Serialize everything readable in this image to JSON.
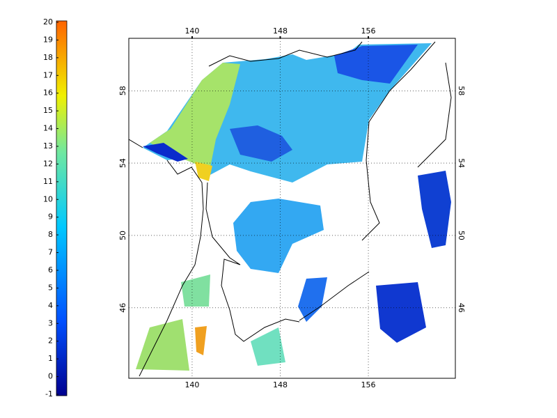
{
  "colorbar": {
    "range": [
      -1,
      20
    ],
    "ticks": [
      -1,
      0,
      1,
      2,
      3,
      4,
      5,
      6,
      7,
      8,
      9,
      10,
      11,
      12,
      13,
      14,
      15,
      16,
      17,
      18,
      19,
      20
    ]
  },
  "map": {
    "lon_range": [
      134.25,
      163.9
    ],
    "lat_range": [
      42.1,
      60.9
    ],
    "lon_ticks": [
      140,
      148,
      156
    ],
    "lat_ticks": [
      46,
      50,
      54,
      58
    ]
  }
}
